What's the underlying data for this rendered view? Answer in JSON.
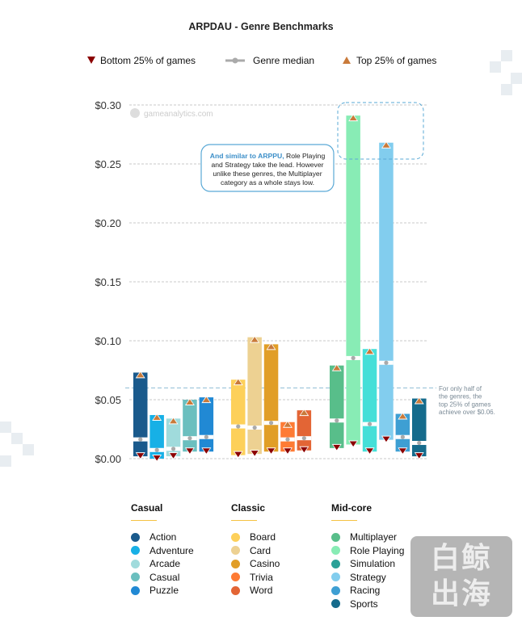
{
  "chart_data": {
    "type": "bar",
    "subtype": "range-bar (bottom 25% to top 25%, with median)",
    "title": "ARPDAU - Genre Benchmarks",
    "legend": {
      "bottom": "Bottom 25% of games",
      "median": "Genre median",
      "top": "Top 25% of games",
      "placement": "top"
    },
    "watermark_site": "gameanalytics.com",
    "ylim": [
      0,
      0.3
    ],
    "yticks": [
      "$0.00",
      "$0.05",
      "$0.10",
      "$0.15",
      "$0.20",
      "$0.25",
      "$0.30"
    ],
    "ytick_values": [
      0,
      0.05,
      0.1,
      0.15,
      0.2,
      0.25,
      0.3
    ],
    "grid": true,
    "reference_line": {
      "value": 0.06,
      "annotation": [
        "For only half of",
        "the genres, the",
        "top 25% of games",
        "achieve over $0.06."
      ]
    },
    "callout": {
      "highlight": "And similar to ARPPU,",
      "lines": [
        "Role Playing",
        "and Strategy take the lead. However",
        "unlike these genres, the Multiplayer",
        "category as a whole stays low."
      ]
    },
    "groups": [
      {
        "name": "Casual",
        "genres": [
          {
            "name": "Action",
            "color": "#1a5a8c",
            "bottom": 0.002,
            "median": 0.016,
            "top": 0.073
          },
          {
            "name": "Adventure",
            "color": "#17b0e6",
            "bottom": 0.0,
            "median": 0.007,
            "top": 0.037
          },
          {
            "name": "Arcade",
            "color": "#a0dbdc",
            "bottom": 0.002,
            "median": 0.008,
            "top": 0.034
          },
          {
            "name": "Casual",
            "color": "#6bbfbf",
            "bottom": 0.006,
            "median": 0.017,
            "top": 0.05
          },
          {
            "name": "Puzzle",
            "color": "#2189d4",
            "bottom": 0.006,
            "median": 0.018,
            "top": 0.052
          }
        ]
      },
      {
        "name": "Classic",
        "genres": [
          {
            "name": "Board",
            "color": "#fdd05a",
            "bottom": 0.003,
            "median": 0.027,
            "top": 0.067
          },
          {
            "name": "Card",
            "color": "#edd192",
            "bottom": 0.004,
            "median": 0.026,
            "top": 0.103
          },
          {
            "name": "Casino",
            "color": "#e19e27",
            "bottom": 0.006,
            "median": 0.03,
            "top": 0.097
          },
          {
            "name": "Trivia",
            "color": "#fe7b34",
            "bottom": 0.006,
            "median": 0.016,
            "top": 0.031
          },
          {
            "name": "Word",
            "color": "#e36535",
            "bottom": 0.007,
            "median": 0.017,
            "top": 0.041
          }
        ]
      },
      {
        "name": "Mid-core",
        "genres": [
          {
            "name": "Multiplayer",
            "color": "#58be8a",
            "bottom": 0.009,
            "median": 0.032,
            "top": 0.079
          },
          {
            "name": "Role Playing",
            "color": "#88ecb5",
            "bottom": 0.012,
            "median": 0.085,
            "top": 0.291
          },
          {
            "name": "Simulation",
            "color": "#45dfd8",
            "legend_color": "#2aa198",
            "bottom": 0.006,
            "median": 0.029,
            "top": 0.093
          },
          {
            "name": "Strategy",
            "color": "#82cdee",
            "bottom": 0.016,
            "median": 0.081,
            "top": 0.268
          },
          {
            "name": "Racing",
            "color": "#3e9fd3",
            "bottom": 0.006,
            "median": 0.018,
            "top": 0.038
          },
          {
            "name": "Sports",
            "color": "#156b8c",
            "bottom": 0.002,
            "median": 0.013,
            "top": 0.051
          }
        ]
      }
    ],
    "marker_colors": {
      "top": "#c97a3a",
      "bottom": "#8b0000",
      "median": "#aaaaaa",
      "reference": "#8fbcd4"
    }
  },
  "overlay_watermark": "白鲸出海"
}
